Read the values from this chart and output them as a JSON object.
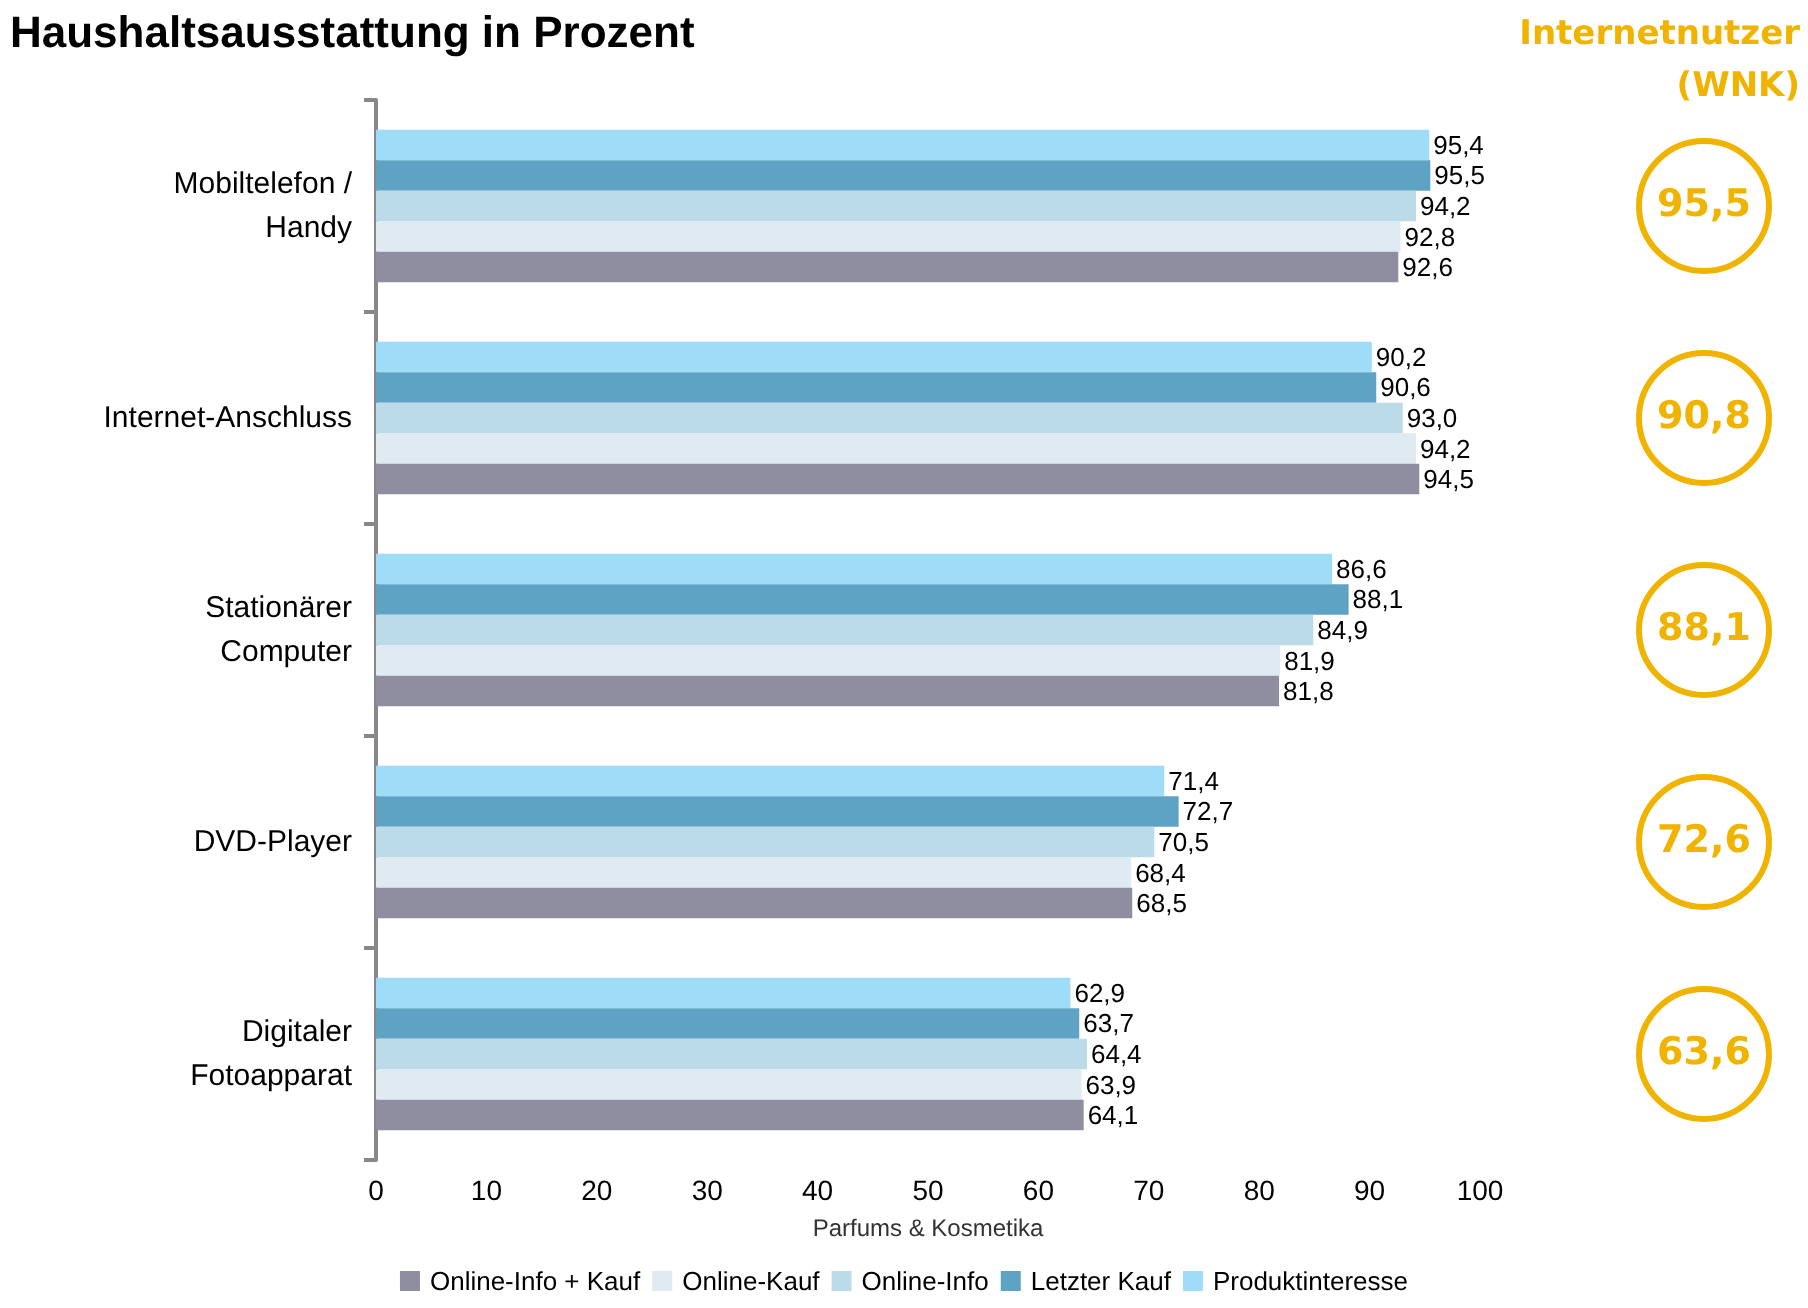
{
  "chart_data": {
    "type": "bar",
    "orientation": "horizontal",
    "title": "Haushaltsausstattung in Prozent",
    "xlabel": "Parfums & Kosmetika",
    "categories": [
      "Mobiltelefon /\nHandy",
      "Internet-Anschluss",
      "Stationärer\nComputer",
      "DVD-Player",
      "Digitaler\nFotoapparat"
    ],
    "series": [
      {
        "name": "Online-Info + Kauf",
        "color": "#8e8ea0",
        "values": [
          92.6,
          94.5,
          81.8,
          68.5,
          64.1
        ],
        "value_labels": [
          "92,6",
          "94,5",
          "81,8",
          "68,5",
          "64,1"
        ]
      },
      {
        "name": "Online-Kauf",
        "color": "#dfeaf2",
        "values": [
          92.8,
          94.2,
          81.9,
          68.4,
          63.9
        ],
        "value_labels": [
          "92,8",
          "94,2",
          "81,9",
          "68,4",
          "63,9"
        ]
      },
      {
        "name": "Online-Info",
        "color": "#bcdbe8",
        "values": [
          94.2,
          93.0,
          84.9,
          70.5,
          64.4
        ],
        "value_labels": [
          "94,2",
          "93,0",
          "84,9",
          "70,5",
          "64,4"
        ]
      },
      {
        "name": "Letzter Kauf",
        "color": "#5fa3c4",
        "values": [
          95.5,
          90.6,
          88.1,
          72.7,
          63.7
        ],
        "value_labels": [
          "95,5",
          "90,6",
          "88,1",
          "72,7",
          "63,7"
        ]
      },
      {
        "name": "Produktinteresse",
        "color": "#9fdcf8",
        "values": [
          95.4,
          90.2,
          86.6,
          71.4,
          62.9
        ],
        "value_labels": [
          "95,4",
          "90,2",
          "86,6",
          "71,4",
          "62,9"
        ]
      }
    ],
    "xlim": [
      0,
      100
    ],
    "xticks": [
      0,
      10,
      20,
      30,
      40,
      50,
      60,
      70,
      80,
      90,
      100
    ],
    "grid": false,
    "legend": "bottom",
    "annotations": [
      "Internetnutzer\n(WNK)",
      "95,5",
      "90,8",
      "88,1",
      "72,6",
      "63,6"
    ]
  }
}
